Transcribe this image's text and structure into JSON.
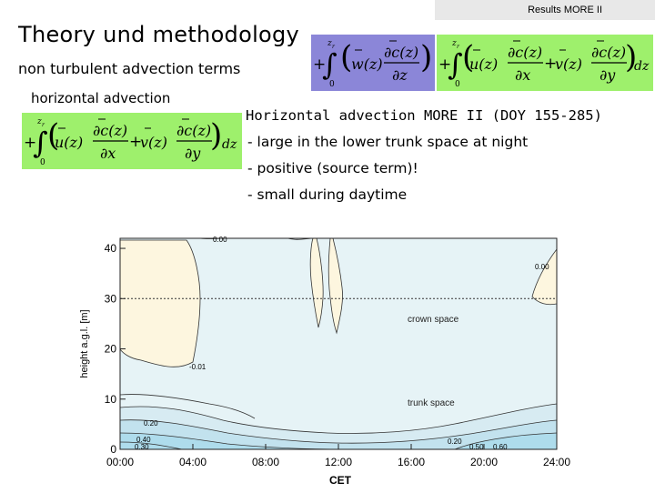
{
  "header": {
    "tag": "Results MORE II",
    "title": "Theory und methodology",
    "subtitle": "non turbulent advection terms",
    "label_horizontal": "horizontal advection"
  },
  "equations": {
    "upper_limit": "z",
    "upper_limit_sub": "r",
    "lower_limit": "0",
    "plus": "+",
    "dz": "dz",
    "vertical": {
      "coef": "w(z)",
      "num": "∂c(z)",
      "den": "∂z"
    },
    "horizontal_u": {
      "coef": "u(z)",
      "num": "∂c(z)",
      "den": "∂x"
    },
    "horizontal_v": {
      "coef": "v(z)",
      "num": "∂c(z)",
      "den": "∂y"
    },
    "colors": {
      "vertical_bg": "#8b86d8",
      "horizontal_bg": "#9ef06c"
    }
  },
  "description": {
    "heading": "Horizontal advection MORE II (DOY 155-285)",
    "bullets": [
      "- large in the lower trunk space at night",
      "- positive (source term)!",
      "- small during daytime"
    ]
  },
  "chart_data": {
    "type": "heatmap",
    "xlabel": "CET",
    "ylabel": "height a.g.l. [m]",
    "x_ticks": [
      "00:00",
      "04:00",
      "08:00",
      "12:00",
      "16:00",
      "20:00",
      "24:00"
    ],
    "y_ticks": [
      "0",
      "10",
      "20",
      "30",
      "40"
    ],
    "xlim": [
      0,
      24
    ],
    "ylim": [
      0,
      42
    ],
    "annotations": [
      "crown space",
      "trunk space"
    ],
    "contour_labels": [
      "0.20",
      "0.40",
      "0.30",
      "0.00",
      "0.50",
      "-0.01",
      "0.60"
    ],
    "crown_height": 30,
    "colors": {
      "positive": "#fdf6df",
      "near_zero": "#d8ecf0",
      "background": "#e6f3f6",
      "strong": "#aedcec"
    }
  }
}
